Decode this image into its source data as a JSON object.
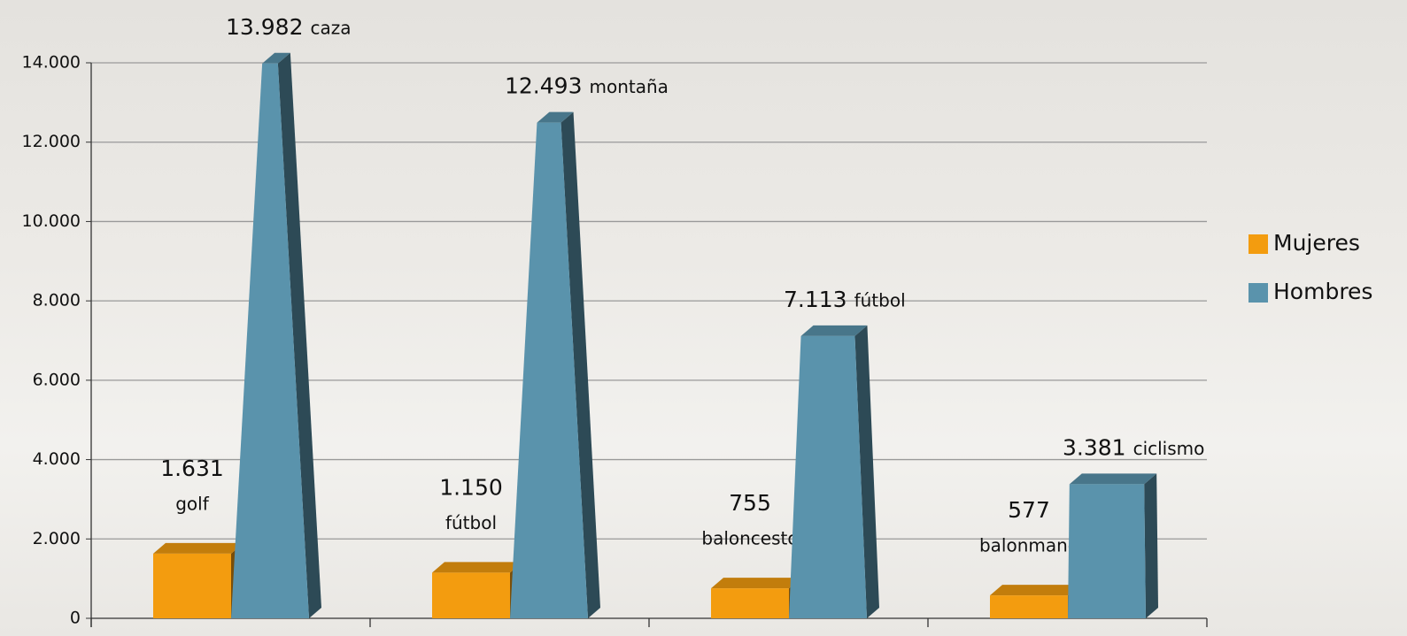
{
  "chart_data": {
    "type": "bar",
    "categories": [
      null,
      null,
      null,
      null
    ],
    "series": [
      {
        "name": "Mujeres",
        "color": "#f39c0f",
        "values": [
          1631,
          1150,
          755,
          577
        ],
        "value_labels": [
          "1.631",
          "1.150",
          "755",
          "577"
        ],
        "sports": [
          "golf",
          "fútbol",
          "baloncesto",
          "balonmano"
        ]
      },
      {
        "name": "Hombres",
        "color": "#5a93ac",
        "values": [
          13982,
          12493,
          7113,
          3381
        ],
        "value_labels": [
          "13.982",
          "12.493",
          "7.113",
          "3.381"
        ],
        "sports": [
          "caza",
          "montaña",
          "fútbol",
          "ciclismo"
        ]
      }
    ],
    "ylim": [
      0,
      14000
    ],
    "yticks": [
      0,
      {
        "value": 2000,
        "label": "2.000"
      },
      {
        "value": 4000,
        "label": "4.000"
      },
      {
        "value": 6000,
        "label": "6.000"
      },
      {
        "value": 8000,
        "label": "8.000"
      },
      {
        "value": 10000,
        "label": "10.000"
      },
      {
        "value": 12000,
        "label": "12.000"
      },
      {
        "value": 14000,
        "label": "14.000"
      }
    ],
    "grid": true,
    "legend": "right"
  }
}
